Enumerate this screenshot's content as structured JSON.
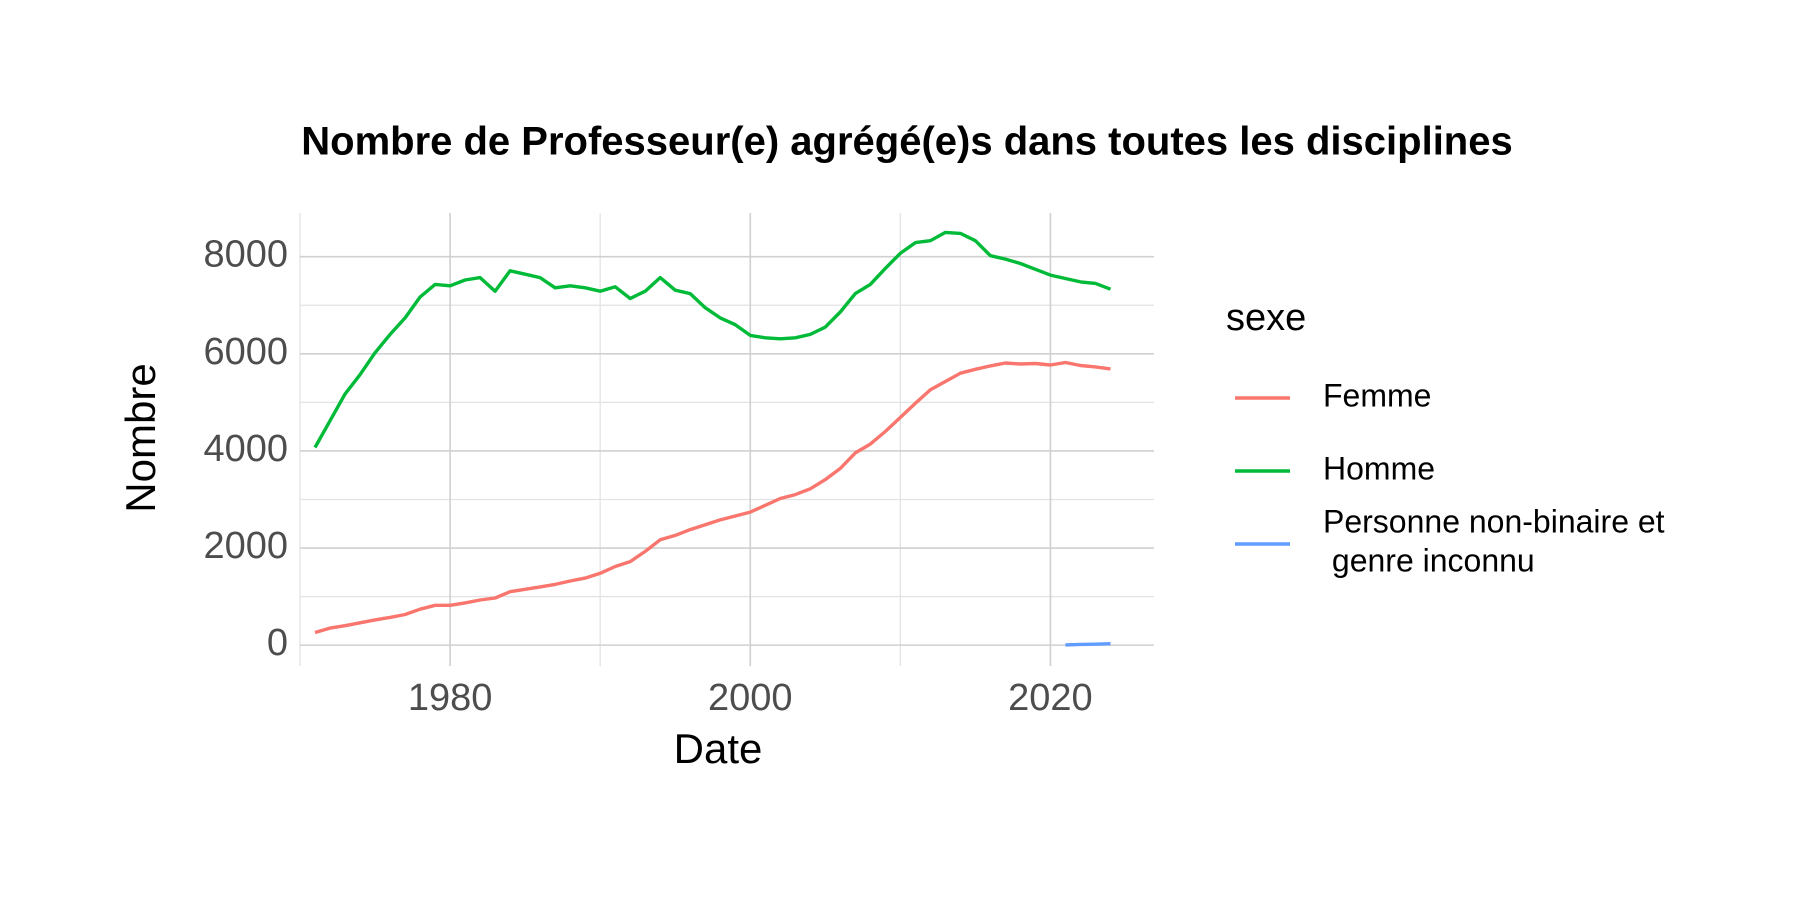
{
  "chart_data": {
    "type": "line",
    "title": "Nombre de Professeur(e) agrégé(e)s dans toutes les disciplines",
    "x_label": "Date",
    "y_label": "Nombre",
    "legend_title": "sexe",
    "x": [
      1971,
      1972,
      1973,
      1974,
      1975,
      1976,
      1977,
      1978,
      1979,
      1980,
      1981,
      1982,
      1983,
      1984,
      1985,
      1986,
      1987,
      1988,
      1989,
      1990,
      1991,
      1992,
      1993,
      1994,
      1995,
      1996,
      1997,
      1998,
      1999,
      2000,
      2001,
      2002,
      2003,
      2004,
      2005,
      2006,
      2007,
      2008,
      2009,
      2010,
      2011,
      2012,
      2013,
      2014,
      2015,
      2016,
      2017,
      2018,
      2019,
      2020,
      2021,
      2022,
      2023,
      2024
    ],
    "series": [
      {
        "name": "Femme",
        "color": "#F8766D",
        "values": [
          260,
          350,
          400,
          460,
          520,
          570,
          630,
          740,
          820,
          820,
          870,
          930,
          970,
          1100,
          1150,
          1200,
          1250,
          1320,
          1380,
          1480,
          1620,
          1720,
          1930,
          2170,
          2260,
          2380,
          2480,
          2580,
          2660,
          2740,
          2880,
          3020,
          3100,
          3220,
          3410,
          3640,
          3960,
          4140,
          4400,
          4690,
          4980,
          5260,
          5430,
          5600,
          5680,
          5750,
          5810,
          5790,
          5800,
          5770,
          5820,
          5760,
          5730,
          5690
        ]
      },
      {
        "name": "Homme",
        "color": "#00BA38",
        "values": [
          4070,
          4620,
          5170,
          5570,
          6020,
          6400,
          6740,
          7170,
          7430,
          7400,
          7520,
          7570,
          7290,
          7710,
          7640,
          7570,
          7360,
          7400,
          7360,
          7290,
          7380,
          7140,
          7290,
          7570,
          7310,
          7240,
          6950,
          6740,
          6600,
          6380,
          6330,
          6310,
          6330,
          6400,
          6550,
          6860,
          7240,
          7430,
          7760,
          8070,
          8290,
          8330,
          8500,
          8480,
          8330,
          8020,
          7950,
          7860,
          7740,
          7620,
          7550,
          7480,
          7450,
          7330
        ]
      },
      {
        "name": "Personne non-binaire et\n genre inconnu",
        "color": "#619CFF",
        "values": [
          null,
          null,
          null,
          null,
          null,
          null,
          null,
          null,
          null,
          null,
          null,
          null,
          null,
          null,
          null,
          null,
          null,
          null,
          null,
          null,
          null,
          null,
          null,
          null,
          null,
          null,
          null,
          null,
          null,
          null,
          null,
          null,
          null,
          null,
          null,
          null,
          null,
          null,
          null,
          null,
          null,
          null,
          null,
          null,
          null,
          null,
          null,
          null,
          null,
          null,
          5,
          15,
          20,
          30
        ]
      }
    ],
    "xlim": [
      1970,
      2026.9
    ],
    "xticks": [
      1980,
      2000,
      2020
    ],
    "xminor": [
      1970,
      1990,
      2010
    ],
    "ylim": [
      -430,
      8900
    ],
    "yticks": [
      0,
      2000,
      4000,
      6000,
      8000
    ],
    "yminor": [
      1000,
      3000,
      5000,
      7000
    ],
    "grid": true,
    "legend": "right"
  }
}
